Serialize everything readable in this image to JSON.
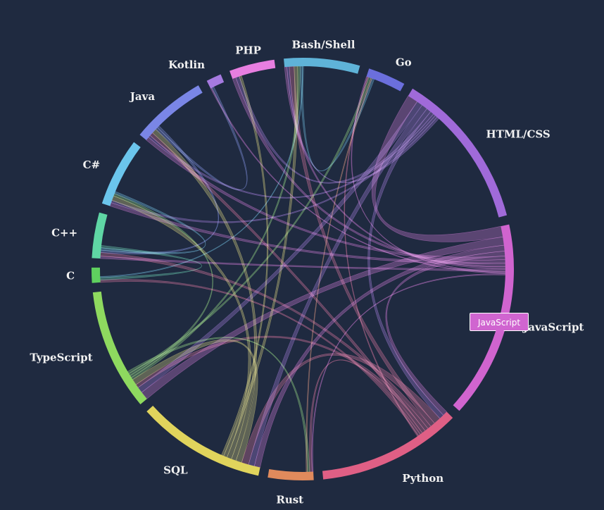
{
  "chart_data": {
    "type": "chord",
    "title": "",
    "groups": [
      {
        "name": "Bash/Shell",
        "color": "#5fb3d8",
        "weight": 10
      },
      {
        "name": "Go",
        "color": "#6b6fdc",
        "weight": 5
      },
      {
        "name": "HTML/CSS",
        "color": "#a06ad9",
        "weight": 21
      },
      {
        "name": "JavaScript",
        "color": "#d064cf",
        "weight": 26
      },
      {
        "name": "Python",
        "color": "#df5f85",
        "weight": 19
      },
      {
        "name": "Rust",
        "color": "#e08a5c",
        "weight": 6
      },
      {
        "name": "SQL",
        "color": "#e0d45c",
        "weight": 17
      },
      {
        "name": "TypeScript",
        "color": "#8ed95f",
        "weight": 16
      },
      {
        "name": "C",
        "color": "#5fd05f",
        "weight": 2
      },
      {
        "name": "C++",
        "color": "#5fd6a5",
        "weight": 6
      },
      {
        "name": "C#",
        "color": "#6bc5ec",
        "weight": 9
      },
      {
        "name": "Java",
        "color": "#7a86e6",
        "weight": 10
      },
      {
        "name": "Kotlin",
        "color": "#a67ae0",
        "weight": 2
      },
      {
        "name": "PHP",
        "color": "#e77ee0",
        "weight": 6
      }
    ],
    "flows": [
      [
        "JavaScript",
        "HTML/CSS",
        9
      ],
      [
        "JavaScript",
        "TypeScript",
        7
      ],
      [
        "JavaScript",
        "SQL",
        5
      ],
      [
        "JavaScript",
        "Python",
        4
      ],
      [
        "JavaScript",
        "Java",
        3
      ],
      [
        "JavaScript",
        "C#",
        3
      ],
      [
        "JavaScript",
        "PHP",
        3
      ],
      [
        "JavaScript",
        "Bash/Shell",
        2
      ],
      [
        "JavaScript",
        "C++",
        2
      ],
      [
        "JavaScript",
        "Go",
        1
      ],
      [
        "JavaScript",
        "Kotlin",
        1
      ],
      [
        "JavaScript",
        "Rust",
        1
      ],
      [
        "HTML/CSS",
        "TypeScript",
        5
      ],
      [
        "HTML/CSS",
        "SQL",
        5
      ],
      [
        "HTML/CSS",
        "Python",
        4
      ],
      [
        "HTML/CSS",
        "PHP",
        3
      ],
      [
        "HTML/CSS",
        "Java",
        2
      ],
      [
        "HTML/CSS",
        "C#",
        2
      ],
      [
        "HTML/CSS",
        "Bash/Shell",
        2
      ],
      [
        "Python",
        "SQL",
        6
      ],
      [
        "Python",
        "Bash/Shell",
        4
      ],
      [
        "Python",
        "C++",
        3
      ],
      [
        "Python",
        "TypeScript",
        3
      ],
      [
        "Python",
        "Java",
        3
      ],
      [
        "Python",
        "Rust",
        2
      ],
      [
        "Python",
        "C",
        2
      ],
      [
        "Python",
        "Go",
        1
      ],
      [
        "SQL",
        "TypeScript",
        5
      ],
      [
        "SQL",
        "Java",
        4
      ],
      [
        "SQL",
        "C#",
        4
      ],
      [
        "SQL",
        "Bash/Shell",
        3
      ],
      [
        "SQL",
        "PHP",
        2
      ],
      [
        "TypeScript",
        "Bash/Shell",
        2
      ],
      [
        "TypeScript",
        "C#",
        2
      ],
      [
        "TypeScript",
        "Go",
        2
      ],
      [
        "TypeScript",
        "Rust",
        2
      ],
      [
        "Java",
        "Kotlin",
        2
      ],
      [
        "Java",
        "C++",
        2
      ],
      [
        "C#",
        "C++",
        2
      ],
      [
        "C++",
        "C",
        2
      ],
      [
        "Rust",
        "Go",
        1
      ],
      [
        "Bash/Shell",
        "Go",
        2
      ],
      [
        "Bash/Shell",
        "C",
        1
      ]
    ]
  },
  "tooltip": {
    "text": "JavaScript"
  }
}
